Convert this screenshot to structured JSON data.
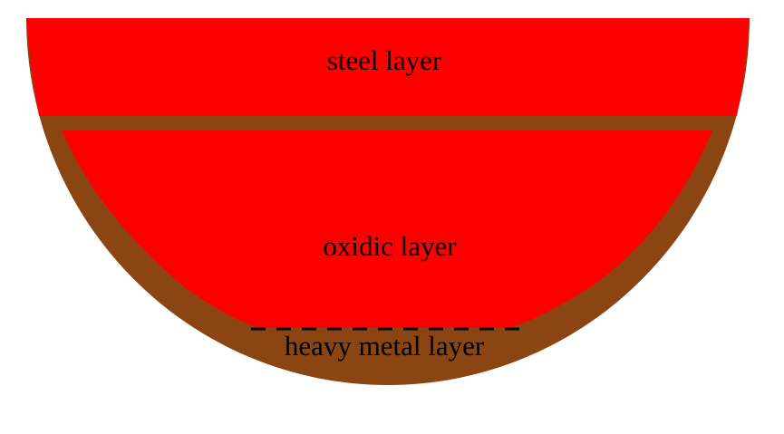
{
  "labels": {
    "steel_layer": "steel layer",
    "oxidic_layer": "oxidic layer",
    "heavy_metal_layer": "heavy metal layer"
  },
  "colors": {
    "background": "#ffffff",
    "steel_layer": "#ff0000",
    "vessel_wall": "#8b4513",
    "oxidic_layer": "#ff0000",
    "boundary_dashes": "#000000",
    "text": "#000000"
  }
}
